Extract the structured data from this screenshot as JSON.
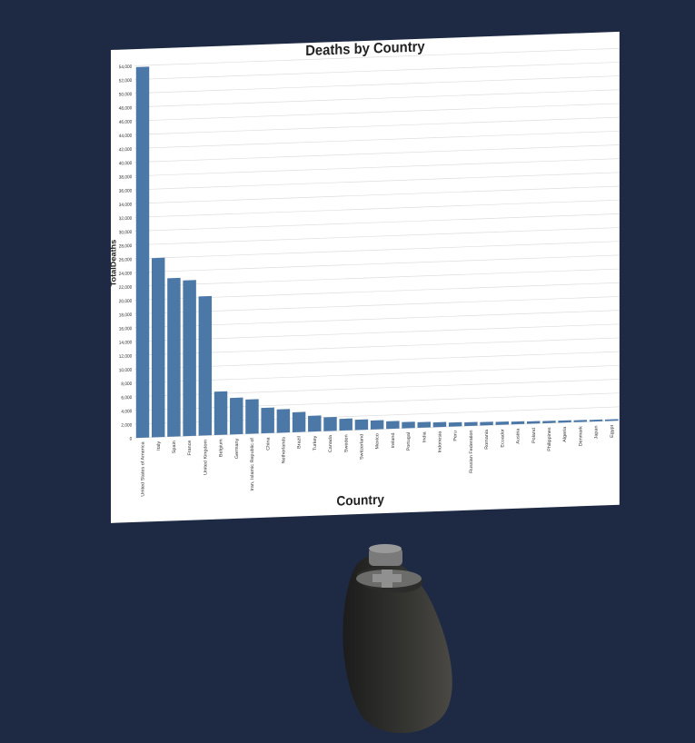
{
  "colors": {
    "background": "#1e2a44",
    "panel": "#ffffff",
    "bar": "#4c78a8",
    "grid": "#dddddd",
    "controller_body": "#3b3b38",
    "controller_top": "#8a8a8a"
  },
  "chart_data": {
    "type": "bar",
    "title": "Deaths by Country",
    "xlabel": "Country",
    "ylabel": "TotalDeaths",
    "ylim": [
      0,
      54000
    ],
    "ytick_step": 2000,
    "grid": true,
    "categories": [
      "United States of America",
      "Italy",
      "Spain",
      "France",
      "United Kingdom",
      "Belgium",
      "Germany",
      "Iran, Islamic Republic of",
      "China",
      "Netherlands",
      "Brazil",
      "Turkey",
      "Canada",
      "Sweden",
      "Switzerland",
      "Mexico",
      "Ireland",
      "Portugal",
      "India",
      "Indonesia",
      "Peru",
      "Russian Federation",
      "Romania",
      "Ecuador",
      "Austria",
      "Poland",
      "Philippines",
      "Algeria",
      "Denmark",
      "Japan",
      "Egypt"
    ],
    "values": [
      53800,
      26000,
      23000,
      22600,
      20200,
      6300,
      5300,
      5000,
      3700,
      3400,
      2900,
      2300,
      2000,
      1700,
      1500,
      1300,
      1100,
      900,
      800,
      700,
      600,
      550,
      500,
      450,
      400,
      350,
      320,
      300,
      270,
      250,
      230
    ]
  }
}
